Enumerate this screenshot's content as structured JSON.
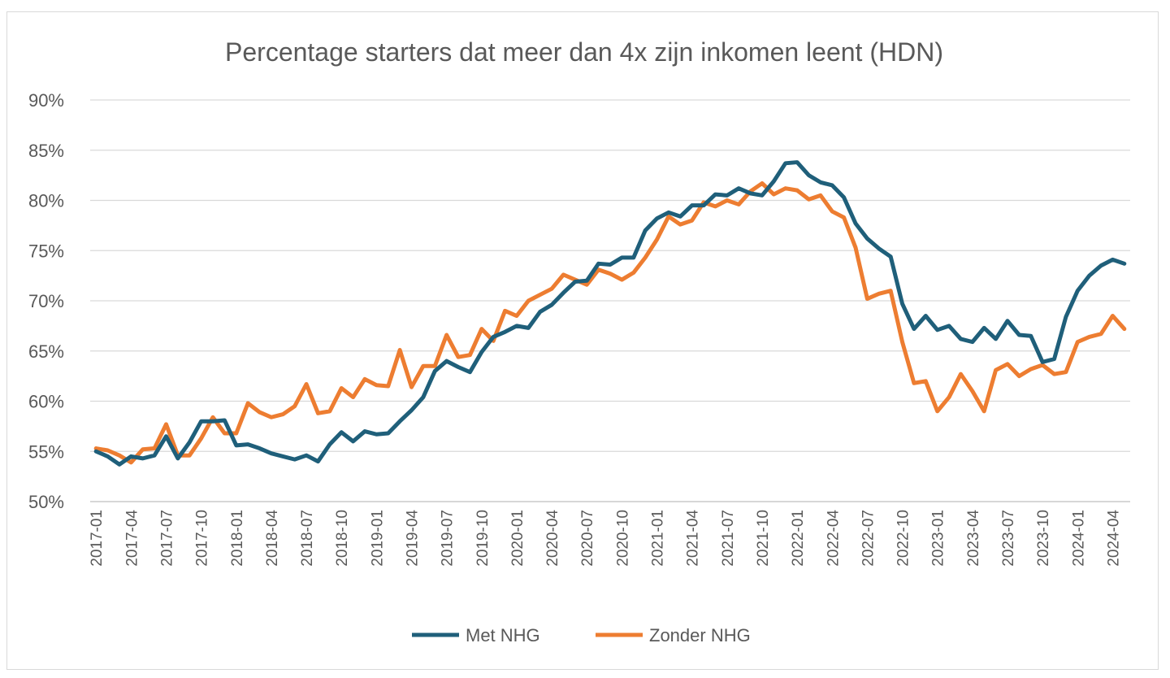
{
  "chart_data": {
    "type": "line",
    "title": "Percentage starters dat meer dan 4x zijn inkomen leent (HDN)",
    "xlabel": "",
    "ylabel": "",
    "ylim": [
      50,
      90
    ],
    "y_tick_values": [
      50,
      55,
      60,
      65,
      70,
      75,
      80,
      85,
      90
    ],
    "y_tick_labels": [
      "50%",
      "55%",
      "60%",
      "65%",
      "70%",
      "75%",
      "80%",
      "85%",
      "90%"
    ],
    "x_tick_labels": [
      "2017-01",
      "2017-04",
      "2017-07",
      "2017-10",
      "2018-01",
      "2018-04",
      "2018-07",
      "2018-10",
      "2019-01",
      "2019-04",
      "2019-07",
      "2019-10",
      "2020-01",
      "2020-04",
      "2020-07",
      "2020-10",
      "2021-01",
      "2021-04",
      "2021-07",
      "2021-10",
      "2022-01",
      "2022-04",
      "2022-07",
      "2022-10",
      "2023-01",
      "2023-04",
      "2023-07",
      "2023-10",
      "2024-01",
      "2024-04"
    ],
    "grid": true,
    "legend_position": "bottom",
    "series": [
      {
        "name": "Met NHG",
        "color": "#1f5f7a",
        "values": [
          55.0,
          54.5,
          53.7,
          54.5,
          54.3,
          54.6,
          56.5,
          54.3,
          55.9,
          58.0,
          58.0,
          58.1,
          55.6,
          55.7,
          55.3,
          54.8,
          54.5,
          54.2,
          54.6,
          54.0,
          55.7,
          56.9,
          56.0,
          57.0,
          56.7,
          56.8,
          58.0,
          59.1,
          60.4,
          63.0,
          64.0,
          63.4,
          62.9,
          64.9,
          66.4,
          66.9,
          67.5,
          67.3,
          68.9,
          69.6,
          70.8,
          71.9,
          72.0,
          73.7,
          73.6,
          74.3,
          74.3,
          77.0,
          78.2,
          78.8,
          78.4,
          79.5,
          79.5,
          80.6,
          80.5,
          81.2,
          80.7,
          80.5,
          81.9,
          83.7,
          83.8,
          82.5,
          81.8,
          81.5,
          80.3,
          77.7,
          76.2,
          75.2,
          74.4,
          69.7,
          67.2,
          68.5,
          67.1,
          67.5,
          66.2,
          65.9,
          67.3,
          66.2,
          68.0,
          66.6,
          66.5,
          63.9,
          64.2,
          68.4,
          71.0,
          72.5,
          73.5,
          74.1,
          73.7
        ]
      },
      {
        "name": "Zonder NHG",
        "color": "#ed7d31",
        "values": [
          55.3,
          55.1,
          54.6,
          53.9,
          55.2,
          55.3,
          57.7,
          54.6,
          54.6,
          56.3,
          58.4,
          56.8,
          56.8,
          59.8,
          58.9,
          58.4,
          58.7,
          59.5,
          61.7,
          58.8,
          59.0,
          61.3,
          60.4,
          62.2,
          61.6,
          61.5,
          65.1,
          61.4,
          63.5,
          63.5,
          66.6,
          64.4,
          64.6,
          67.2,
          66.0,
          69.0,
          68.5,
          70.0,
          70.6,
          71.2,
          72.6,
          72.1,
          71.6,
          73.1,
          72.7,
          72.1,
          72.8,
          74.3,
          76.1,
          78.4,
          77.6,
          78.0,
          79.8,
          79.4,
          80.0,
          79.6,
          80.9,
          81.7,
          80.6,
          81.2,
          81.0,
          80.1,
          80.5,
          78.9,
          78.3,
          75.3,
          70.2,
          70.7,
          71.0,
          65.9,
          61.8,
          62.0,
          59.0,
          60.4,
          62.7,
          61.0,
          59.0,
          63.1,
          63.7,
          62.5,
          63.2,
          63.6,
          62.7,
          62.9,
          65.9,
          66.4,
          66.7,
          68.5,
          67.2
        ]
      }
    ]
  }
}
